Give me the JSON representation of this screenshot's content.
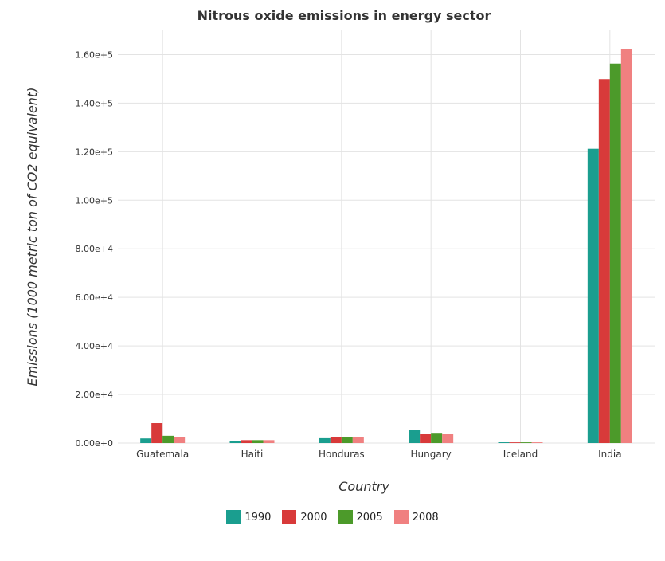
{
  "chart_data": {
    "type": "bar",
    "title": "Nitrous oxide emissions in energy sector",
    "xlabel": "Country",
    "ylabel": "Emissions (1000 metric ton of CO2 equivalent)",
    "categories": [
      "Guatemala",
      "Haiti",
      "Honduras",
      "Hungary",
      "Iceland",
      "India"
    ],
    "ylim": [
      0,
      170000
    ],
    "yticks": [
      0,
      20000,
      40000,
      60000,
      80000,
      100000,
      120000,
      140000,
      160000
    ],
    "ytick_labels": [
      "0.00e+0",
      "2.00e+4",
      "4.00e+4",
      "6.00e+4",
      "8.00e+4",
      "1.00e+5",
      "1.20e+5",
      "1.40e+5",
      "1.60e+5"
    ],
    "grid": true,
    "legend_position": "bottom-center",
    "series": [
      {
        "name": "1990",
        "color": "#1a9e8f",
        "values": [
          1900,
          750,
          2000,
          5400,
          320,
          121200
        ]
      },
      {
        "name": "2000",
        "color": "#d83a3a",
        "values": [
          8200,
          1200,
          2600,
          3900,
          290,
          149900
        ]
      },
      {
        "name": "2005",
        "color": "#4c9a2a",
        "values": [
          3000,
          1200,
          2500,
          4200,
          300,
          156300
        ]
      },
      {
        "name": "2008",
        "color": "#f08080",
        "values": [
          2400,
          1200,
          2400,
          3900,
          300,
          162400
        ]
      }
    ]
  }
}
